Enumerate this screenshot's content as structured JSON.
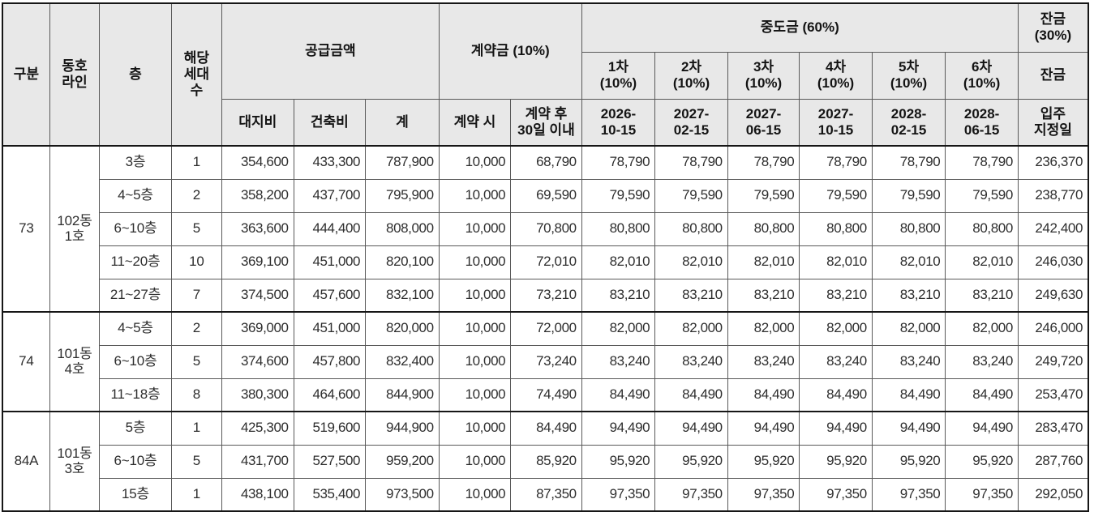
{
  "header": {
    "category": "구분",
    "unit_line": "동호\n라인",
    "floor": "층",
    "households": "해당\n세대\n수",
    "supply_group": "공급금액",
    "supply_cols": [
      "대지비",
      "건축비",
      "계"
    ],
    "contract_group": "계약금 (10%)",
    "contract_cols": [
      "계약 시",
      "계약 후\n30일 이내"
    ],
    "interim_group": "중도금 (60%)",
    "interim_cols": [
      {
        "label": "1차\n(10%)",
        "date": "2026-\n10-15"
      },
      {
        "label": "2차\n(10%)",
        "date": "2027-\n02-15"
      },
      {
        "label": "3차\n(10%)",
        "date": "2027-\n06-15"
      },
      {
        "label": "4차\n(10%)",
        "date": "2027-\n10-15"
      },
      {
        "label": "5차\n(10%)",
        "date": "2028-\n02-15"
      },
      {
        "label": "6차\n(10%)",
        "date": "2028-\n06-15"
      }
    ],
    "balance_group": "잔금\n(30%)",
    "balance_label": "잔금",
    "balance_sub": "입주\n지정일"
  },
  "groups": [
    {
      "type": "73",
      "line": "102동\n1호",
      "rows": [
        {
          "floor": "3층",
          "units": "1",
          "supply": {
            "land": "354,600",
            "construction": "433,300",
            "total": "787,900"
          },
          "down_payment": {
            "at_contract": "10,000",
            "within_30_days": "68,790"
          },
          "interim_payments": [
            "78,790",
            "78,790",
            "78,790",
            "78,790",
            "78,790",
            "78,790"
          ],
          "balance": "236,370"
        },
        {
          "floor": "4~5층",
          "units": "2",
          "supply": {
            "land": "358,200",
            "construction": "437,700",
            "total": "795,900"
          },
          "down_payment": {
            "at_contract": "10,000",
            "within_30_days": "69,590"
          },
          "interim_payments": [
            "79,590",
            "79,590",
            "79,590",
            "79,590",
            "79,590",
            "79,590"
          ],
          "balance": "238,770"
        },
        {
          "floor": "6~10층",
          "units": "5",
          "supply": {
            "land": "363,600",
            "construction": "444,400",
            "total": "808,000"
          },
          "down_payment": {
            "at_contract": "10,000",
            "within_30_days": "70,800"
          },
          "interim_payments": [
            "80,800",
            "80,800",
            "80,800",
            "80,800",
            "80,800",
            "80,800"
          ],
          "balance": "242,400"
        },
        {
          "floor": "11~20층",
          "units": "10",
          "supply": {
            "land": "369,100",
            "construction": "451,000",
            "total": "820,100"
          },
          "down_payment": {
            "at_contract": "10,000",
            "within_30_days": "72,010"
          },
          "interim_payments": [
            "82,010",
            "82,010",
            "82,010",
            "82,010",
            "82,010",
            "82,010"
          ],
          "balance": "246,030"
        },
        {
          "floor": "21~27층",
          "units": "7",
          "supply": {
            "land": "374,500",
            "construction": "457,600",
            "total": "832,100"
          },
          "down_payment": {
            "at_contract": "10,000",
            "within_30_days": "73,210"
          },
          "interim_payments": [
            "83,210",
            "83,210",
            "83,210",
            "83,210",
            "83,210",
            "83,210"
          ],
          "balance": "249,630"
        }
      ]
    },
    {
      "type": "74",
      "line": "101동\n4호",
      "rows": [
        {
          "floor": "4~5층",
          "units": "2",
          "supply": {
            "land": "369,000",
            "construction": "451,000",
            "total": "820,000"
          },
          "down_payment": {
            "at_contract": "10,000",
            "within_30_days": "72,000"
          },
          "interim_payments": [
            "82,000",
            "82,000",
            "82,000",
            "82,000",
            "82,000",
            "82,000"
          ],
          "balance": "246,000"
        },
        {
          "floor": "6~10층",
          "units": "5",
          "supply": {
            "land": "374,600",
            "construction": "457,800",
            "total": "832,400"
          },
          "down_payment": {
            "at_contract": "10,000",
            "within_30_days": "73,240"
          },
          "interim_payments": [
            "83,240",
            "83,240",
            "83,240",
            "83,240",
            "83,240",
            "83,240"
          ],
          "balance": "249,720"
        },
        {
          "floor": "11~18층",
          "units": "8",
          "supply": {
            "land": "380,300",
            "construction": "464,600",
            "total": "844,900"
          },
          "down_payment": {
            "at_contract": "10,000",
            "within_30_days": "74,490"
          },
          "interim_payments": [
            "84,490",
            "84,490",
            "84,490",
            "84,490",
            "84,490",
            "84,490"
          ],
          "balance": "253,470"
        }
      ]
    },
    {
      "type": "84A",
      "line": "101동\n3호",
      "rows": [
        {
          "floor": "5층",
          "units": "1",
          "supply": {
            "land": "425,300",
            "construction": "519,600",
            "total": "944,900"
          },
          "down_payment": {
            "at_contract": "10,000",
            "within_30_days": "84,490"
          },
          "interim_payments": [
            "94,490",
            "94,490",
            "94,490",
            "94,490",
            "94,490",
            "94,490"
          ],
          "balance": "283,470"
        },
        {
          "floor": "6~10층",
          "units": "5",
          "supply": {
            "land": "431,700",
            "construction": "527,500",
            "total": "959,200"
          },
          "down_payment": {
            "at_contract": "10,000",
            "within_30_days": "85,920"
          },
          "interim_payments": [
            "95,920",
            "95,920",
            "95,920",
            "95,920",
            "95,920",
            "95,920"
          ],
          "balance": "287,760"
        },
        {
          "floor": "15층",
          "units": "1",
          "supply": {
            "land": "438,100",
            "construction": "535,400",
            "total": "973,500"
          },
          "down_payment": {
            "at_contract": "10,000",
            "within_30_days": "87,350"
          },
          "interim_payments": [
            "97,350",
            "97,350",
            "97,350",
            "97,350",
            "97,350",
            "97,350"
          ],
          "balance": "292,050"
        }
      ]
    }
  ]
}
